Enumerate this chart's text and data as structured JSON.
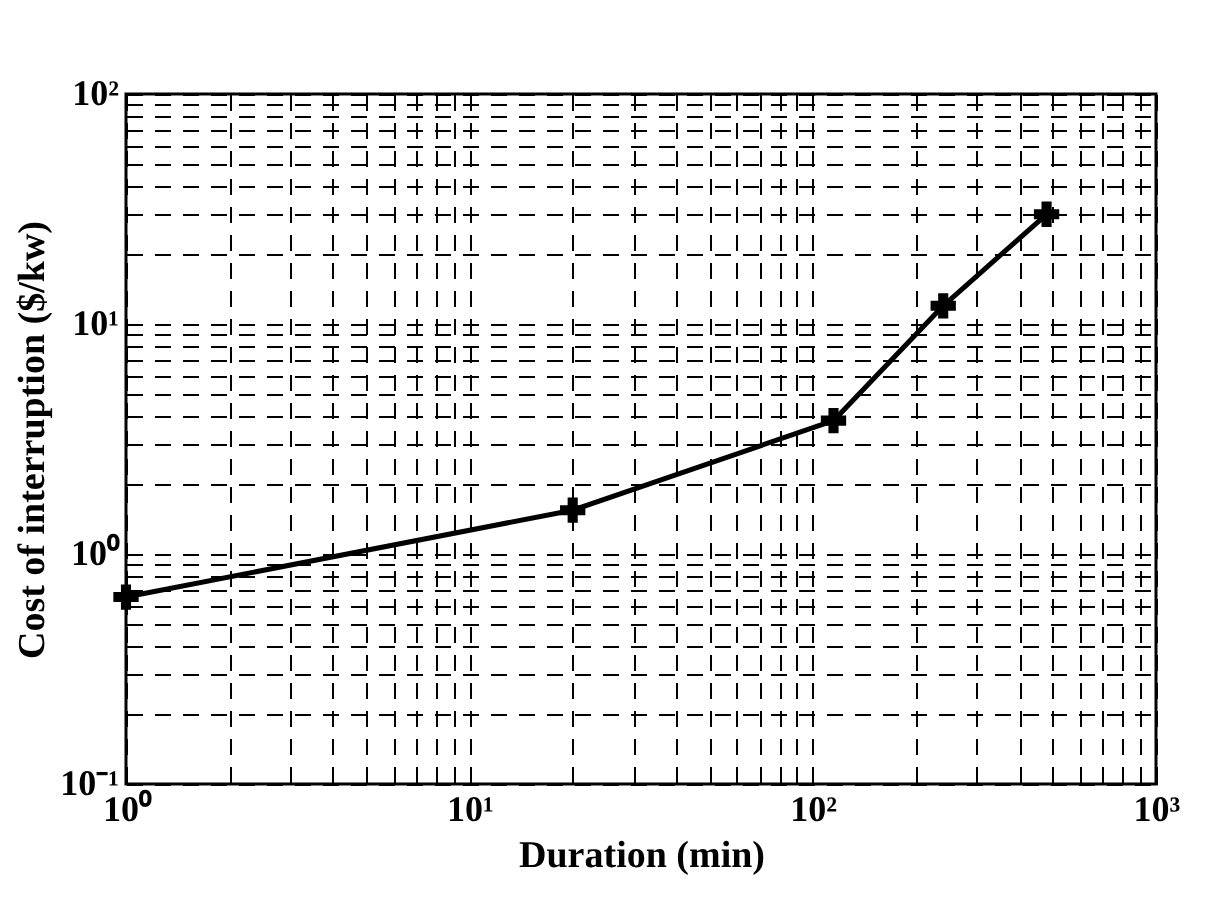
{
  "chart_data": {
    "type": "line",
    "xlabel": "Duration (min)",
    "ylabel": "Cost of interruption ($/kw)",
    "x": [
      1,
      20,
      115,
      240,
      480
    ],
    "series": [
      {
        "color": "#000000",
        "values": [
          0.65,
          1.55,
          3.8,
          12,
          30
        ]
      }
    ],
    "log": "xy",
    "grid": true,
    "marker": "cross",
    "line_style": "solid",
    "xlim": [
      1,
      1000
    ],
    "ylim": [
      0.1,
      100
    ],
    "xticks": [
      {
        "value": 1,
        "label": "10⁰"
      },
      {
        "value": 2,
        "label": null
      },
      {
        "value": 3,
        "label": null
      },
      {
        "value": 4,
        "label": null
      },
      {
        "value": 5,
        "label": null
      },
      {
        "value": 6,
        "label": null
      },
      {
        "value": 7,
        "label": null
      },
      {
        "value": 8,
        "label": null
      },
      {
        "value": 9,
        "label": null
      },
      {
        "value": 10,
        "label": "10¹"
      },
      {
        "value": 20,
        "label": null
      },
      {
        "value": 30,
        "label": null
      },
      {
        "value": 40,
        "label": null
      },
      {
        "value": 50,
        "label": null
      },
      {
        "value": 60,
        "label": null
      },
      {
        "value": 70,
        "label": null
      },
      {
        "value": 80,
        "label": null
      },
      {
        "value": 90,
        "label": null
      },
      {
        "value": 100,
        "label": "10²"
      },
      {
        "value": 200,
        "label": null
      },
      {
        "value": 300,
        "label": null
      },
      {
        "value": 400,
        "label": null
      },
      {
        "value": 500,
        "label": null
      },
      {
        "value": 600,
        "label": null
      },
      {
        "value": 700,
        "label": null
      },
      {
        "value": 800,
        "label": null
      },
      {
        "value": 900,
        "label": null
      },
      {
        "value": 1000,
        "label": "10³"
      }
    ],
    "yticks": [
      {
        "value": 0.1,
        "label": "10⁻¹"
      },
      {
        "value": 0.2,
        "label": null
      },
      {
        "value": 0.3,
        "label": null
      },
      {
        "value": 0.4,
        "label": null
      },
      {
        "value": 0.5,
        "label": null
      },
      {
        "value": 0.6,
        "label": null
      },
      {
        "value": 0.7,
        "label": null
      },
      {
        "value": 0.8,
        "label": null
      },
      {
        "value": 0.9,
        "label": null
      },
      {
        "value": 1,
        "label": "10⁰"
      },
      {
        "value": 2,
        "label": null
      },
      {
        "value": 3,
        "label": null
      },
      {
        "value": 4,
        "label": null
      },
      {
        "value": 5,
        "label": null
      },
      {
        "value": 6,
        "label": null
      },
      {
        "value": 7,
        "label": null
      },
      {
        "value": 8,
        "label": null
      },
      {
        "value": 9,
        "label": null
      },
      {
        "value": 10,
        "label": "10¹"
      },
      {
        "value": 20,
        "label": null
      },
      {
        "value": 30,
        "label": null
      },
      {
        "value": 40,
        "label": null
      },
      {
        "value": 50,
        "label": null
      },
      {
        "value": 60,
        "label": null
      },
      {
        "value": 70,
        "label": null
      },
      {
        "value": 80,
        "label": null
      },
      {
        "value": 90,
        "label": null
      },
      {
        "value": 100,
        "label": "10²"
      }
    ]
  }
}
